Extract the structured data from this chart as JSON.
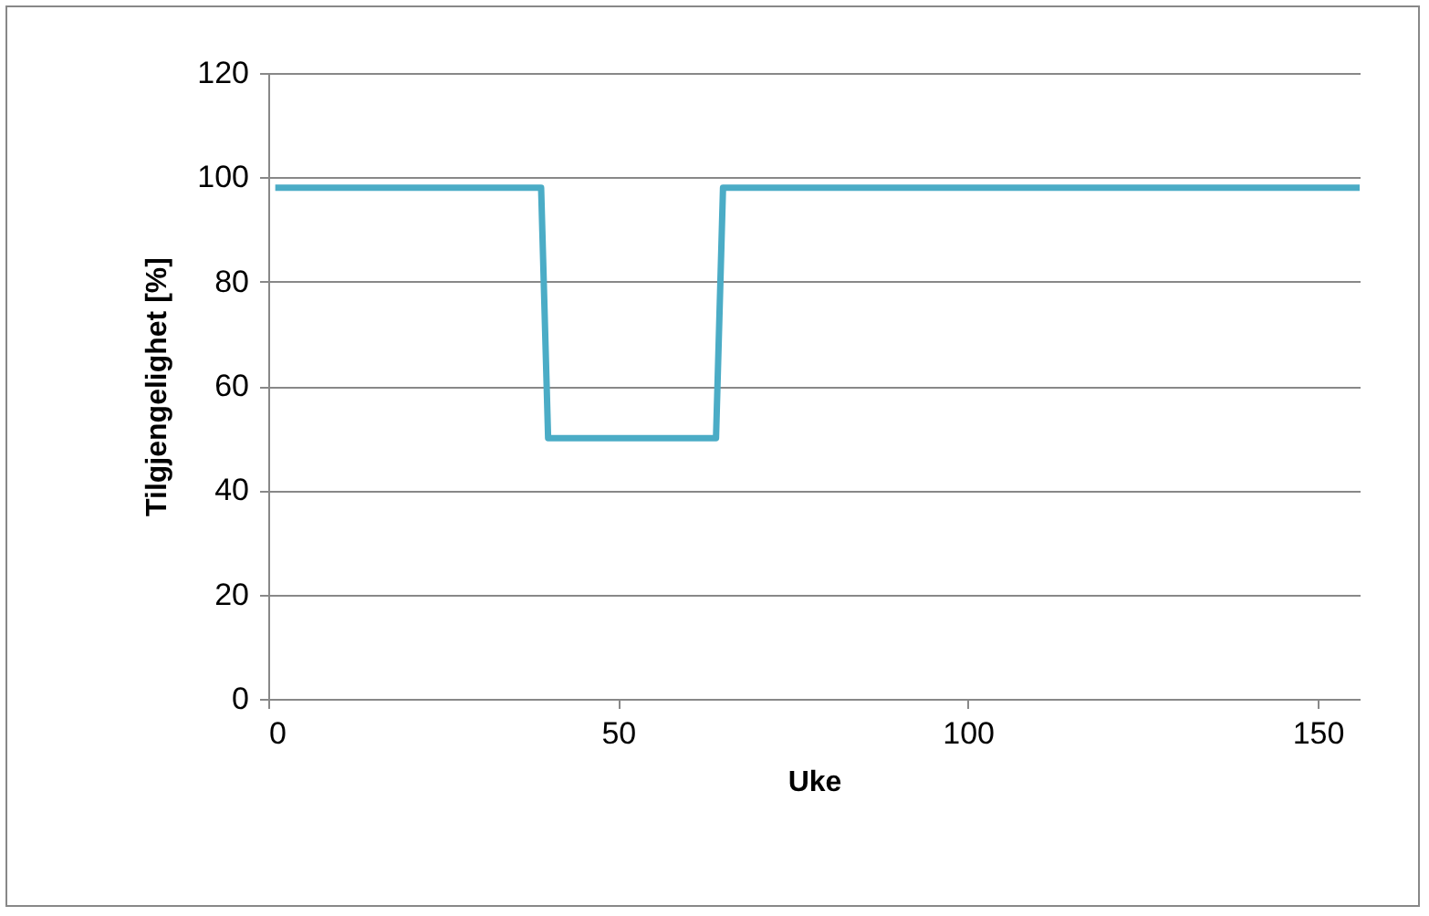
{
  "chart_data": {
    "type": "line",
    "xlabel": "Uke",
    "ylabel": "Tilgjengelighet [%]",
    "x": [
      1,
      39,
      40,
      64,
      65,
      156
    ],
    "series": [
      {
        "color": "#4bacc6",
        "values": [
          98,
          98,
          50,
          50,
          98,
          98
        ]
      }
    ],
    "xlim": [
      0,
      156
    ],
    "xticks": [
      0,
      50,
      100,
      150
    ],
    "ylim": [
      0,
      120
    ],
    "yticks": [
      0,
      20,
      40,
      60,
      80,
      100,
      120
    ],
    "grid": "y",
    "legend": false,
    "marker": "none",
    "line_style": "solid"
  }
}
